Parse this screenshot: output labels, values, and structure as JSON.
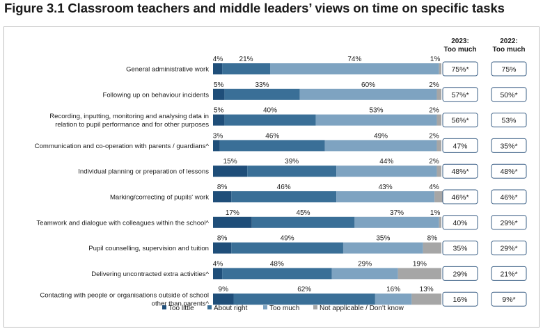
{
  "title": "Figure 3.1 Classroom teachers and middle leaders’ views on time on specific tasks",
  "colors": {
    "too_little": "#1f4e79",
    "about_right": "#3a6f97",
    "too_much": "#7ea3c1",
    "not_applicable": "#a6a6a6"
  },
  "chart_data": {
    "type": "bar",
    "orientation": "horizontal",
    "stacked": true,
    "unit": "%",
    "categories": [
      [
        "General administrative work"
      ],
      [
        "Following up on behaviour incidents"
      ],
      [
        "Recording, inputting, monitoring and analysing data in",
        "relation to pupil performance and for other purposes"
      ],
      [
        "Communication and co-operation with parents / guardians^"
      ],
      [
        "Individual planning or preparation of lessons"
      ],
      [
        "Marking/correcting of pupils' work"
      ],
      [
        "Teamwork and dialogue with colleagues within the school^"
      ],
      [
        "Pupil counselling, supervision and tuition"
      ],
      [
        "Delivering uncontracted extra activities^"
      ],
      [
        "Contacting with people or organisations outside of school",
        "other than parents^"
      ]
    ],
    "series": [
      {
        "name": "Too little",
        "values": [
          4,
          5,
          5,
          3,
          15,
          8,
          17,
          8,
          4,
          9
        ]
      },
      {
        "name": "About right",
        "values": [
          21,
          33,
          40,
          46,
          39,
          46,
          45,
          49,
          48,
          62
        ]
      },
      {
        "name": "Too much",
        "values": [
          74,
          60,
          53,
          49,
          44,
          43,
          37,
          35,
          29,
          16
        ]
      },
      {
        "name": "Not applicable / Don't know",
        "values": [
          1,
          2,
          2,
          2,
          2,
          4,
          1,
          8,
          19,
          13
        ]
      }
    ],
    "xlim": [
      0,
      100
    ],
    "side_columns": [
      {
        "header": [
          "2023:",
          "Too much"
        ],
        "values": [
          "75%*",
          "57%*",
          "56%*",
          "47%",
          "48%*",
          "46%*",
          "40%",
          "35%",
          "29%",
          "16%"
        ]
      },
      {
        "header": [
          "2022:",
          "Too much"
        ],
        "values": [
          "75%",
          "50%*",
          "53%",
          "35%*",
          "48%*",
          "46%*",
          "29%*",
          "29%*",
          "21%*",
          "9%*"
        ]
      }
    ],
    "legend_position": "bottom"
  }
}
